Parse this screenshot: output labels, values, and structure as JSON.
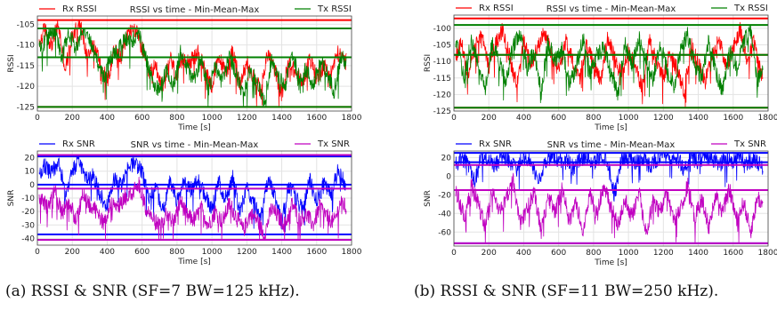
{
  "chart_data": [
    {
      "type": "line",
      "title": "RSSI vs time - Min-Mean-Max",
      "xlabel": "Time [s]",
      "ylabel": "RSSI",
      "xlim": [
        0,
        1800
      ],
      "ylim": [
        -126,
        -103
      ],
      "xticks": [
        0,
        200,
        400,
        600,
        800,
        1000,
        1200,
        1400,
        1600,
        1800
      ],
      "yticks": [
        -125,
        -120,
        -115,
        -110,
        -105
      ],
      "grid": true,
      "legend": "top-left-and-top-right",
      "series": [
        {
          "name": "Rx RSSI",
          "color": "#ff0000",
          "min": -125,
          "mean": -113,
          "max": -104,
          "x": [
            0,
            40,
            80,
            120,
            160,
            200,
            240,
            280,
            320,
            360,
            400,
            440,
            480,
            520,
            560,
            600,
            640,
            680,
            720,
            760,
            800,
            840,
            880,
            920,
            960,
            1000,
            1040,
            1080,
            1120,
            1160,
            1200,
            1240,
            1280,
            1320,
            1360,
            1400,
            1440,
            1480,
            1520,
            1560,
            1600,
            1640,
            1680,
            1720,
            1760
          ],
          "values": [
            -112,
            -106,
            -110,
            -105,
            -116,
            -108,
            -104,
            -112,
            -110,
            -114,
            -119,
            -111,
            -113,
            -107,
            -106,
            -111,
            -117,
            -115,
            -121,
            -113,
            -118,
            -113,
            -114,
            -112,
            -116,
            -120,
            -113,
            -117,
            -111,
            -120,
            -114,
            -118,
            -121,
            -112,
            -116,
            -122,
            -114,
            -117,
            -119,
            -113,
            -118,
            -115,
            -117,
            -112,
            -114
          ]
        },
        {
          "name": "Tx RSSI",
          "color": "#008000",
          "min": -125,
          "mean": -113,
          "max": -106,
          "x": [
            20,
            60,
            100,
            140,
            180,
            220,
            260,
            300,
            340,
            380,
            420,
            460,
            500,
            540,
            580,
            620,
            660,
            700,
            740,
            780,
            820,
            860,
            900,
            940,
            980,
            1020,
            1060,
            1100,
            1140,
            1180,
            1220,
            1260,
            1300,
            1340,
            1380,
            1420,
            1460,
            1500,
            1540,
            1580,
            1620,
            1660,
            1700,
            1740,
            1780
          ],
          "values": [
            -111,
            -108,
            -106,
            -113,
            -107,
            -111,
            -106,
            -109,
            -114,
            -118,
            -113,
            -112,
            -108,
            -109,
            -107,
            -113,
            -119,
            -121,
            -116,
            -120,
            -112,
            -116,
            -118,
            -113,
            -121,
            -115,
            -119,
            -113,
            -117,
            -122,
            -116,
            -119,
            -124,
            -114,
            -118,
            -120,
            -112,
            -118,
            -116,
            -120,
            -114,
            -117,
            -121,
            -113,
            -115
          ]
        }
      ],
      "_row": 0,
      "_col": 0
    },
    {
      "type": "line",
      "title": "SNR vs time - Min-Mean-Max",
      "xlabel": "Time [s]",
      "ylabel": "SNR",
      "xlim": [
        0,
        1800
      ],
      "ylim": [
        -45,
        25
      ],
      "xticks": [
        0,
        200,
        400,
        600,
        800,
        1000,
        1200,
        1400,
        1600,
        1800
      ],
      "yticks": [
        -40,
        -30,
        -20,
        -10,
        0,
        10,
        20
      ],
      "grid": true,
      "legend": "top-left-and-top-right",
      "series": [
        {
          "name": "Rx SNR",
          "color": "#0000ff",
          "min": -37,
          "mean": 0,
          "max": 21,
          "x": [
            0,
            40,
            80,
            120,
            160,
            200,
            240,
            280,
            320,
            360,
            400,
            440,
            480,
            520,
            560,
            600,
            640,
            680,
            720,
            760,
            800,
            840,
            880,
            920,
            960,
            1000,
            1040,
            1080,
            1120,
            1160,
            1200,
            1240,
            1280,
            1320,
            1360,
            1400,
            1440,
            1480,
            1520,
            1560,
            1600,
            1640,
            1680,
            1720,
            1760
          ],
          "values": [
            2,
            15,
            8,
            18,
            -5,
            10,
            19,
            3,
            6,
            -8,
            -15,
            4,
            0,
            12,
            17,
            9,
            -10,
            -3,
            -20,
            2,
            -12,
            1,
            -4,
            5,
            -9,
            -18,
            2,
            -11,
            6,
            -22,
            -2,
            -13,
            -25,
            4,
            -8,
            -28,
            -1,
            -9,
            -19,
            3,
            -12,
            0,
            -7,
            10,
            2
          ]
        },
        {
          "name": "Tx SNR",
          "color": "#c000c0",
          "min": -41,
          "mean": -3,
          "max": 22,
          "x": [
            20,
            60,
            100,
            140,
            180,
            220,
            260,
            300,
            340,
            380,
            420,
            460,
            500,
            540,
            580,
            620,
            660,
            700,
            740,
            780,
            820,
            860,
            900,
            940,
            980,
            1020,
            1060,
            1100,
            1140,
            1180,
            1220,
            1260,
            1300,
            1340,
            1380,
            1420,
            1460,
            1500,
            1540,
            1580,
            1620,
            1660,
            1700,
            1740,
            1780
          ],
          "values": [
            -10,
            -18,
            -5,
            -22,
            -12,
            -26,
            -8,
            -15,
            -20,
            -30,
            -14,
            -16,
            -10,
            -6,
            2,
            -18,
            -25,
            -32,
            -22,
            -28,
            -12,
            -24,
            -26,
            -18,
            -30,
            -20,
            -28,
            -14,
            -24,
            -34,
            -22,
            -26,
            -38,
            -18,
            -24,
            -30,
            -14,
            -26,
            -22,
            -30,
            -16,
            -24,
            -28,
            -12,
            -20
          ]
        }
      ],
      "_row": 1,
      "_col": 0
    },
    {
      "type": "line",
      "title": "RSSI vs time - Min-Mean-Max",
      "xlabel": "Time [s]",
      "ylabel": "RSSI",
      "xlim": [
        0,
        1800
      ],
      "ylim": [
        -125,
        -96
      ],
      "xticks": [
        0,
        200,
        400,
        600,
        800,
        1000,
        1200,
        1400,
        1600,
        1800
      ],
      "yticks": [
        -125,
        -120,
        -115,
        -110,
        -105,
        -100
      ],
      "grid": true,
      "legend": "top-left-and-top-right",
      "series": [
        {
          "name": "Rx RSSI",
          "color": "#ff0000",
          "min": -124,
          "mean": -108,
          "max": -97,
          "x": [
            0,
            40,
            80,
            120,
            160,
            200,
            240,
            280,
            320,
            360,
            400,
            440,
            480,
            520,
            560,
            600,
            640,
            680,
            720,
            760,
            800,
            840,
            880,
            920,
            960,
            1000,
            1040,
            1080,
            1120,
            1160,
            1200,
            1240,
            1280,
            1320,
            1360,
            1400,
            1440,
            1480,
            1520,
            1560,
            1600,
            1640,
            1680,
            1720,
            1760
          ],
          "values": [
            -110,
            -104,
            -114,
            -106,
            -102,
            -112,
            -105,
            -100,
            -109,
            -117,
            -103,
            -111,
            -106,
            -101,
            -108,
            -113,
            -104,
            -110,
            -115,
            -105,
            -111,
            -116,
            -103,
            -109,
            -114,
            -106,
            -112,
            -118,
            -104,
            -110,
            -115,
            -107,
            -113,
            -119,
            -105,
            -111,
            -116,
            -108,
            -103,
            -112,
            -106,
            -100,
            -110,
            -104,
            -114
          ]
        },
        {
          "name": "Tx RSSI",
          "color": "#008000",
          "min": -124,
          "mean": -108,
          "max": -99,
          "x": [
            20,
            60,
            100,
            140,
            180,
            220,
            260,
            300,
            340,
            380,
            420,
            460,
            500,
            540,
            580,
            620,
            660,
            700,
            740,
            780,
            820,
            860,
            900,
            940,
            980,
            1020,
            1060,
            1100,
            1140,
            1180,
            1220,
            1260,
            1300,
            1340,
            1380,
            1420,
            1460,
            1500,
            1540,
            1580,
            1620,
            1660,
            1700,
            1740,
            1780
          ],
          "values": [
            -106,
            -115,
            -103,
            -111,
            -118,
            -104,
            -110,
            -116,
            -105,
            -102,
            -112,
            -107,
            -119,
            -104,
            -110,
            -106,
            -117,
            -112,
            -103,
            -114,
            -108,
            -106,
            -113,
            -120,
            -105,
            -111,
            -103,
            -109,
            -116,
            -104,
            -112,
            -118,
            -106,
            -102,
            -111,
            -115,
            -104,
            -113,
            -119,
            -107,
            -112,
            -104,
            -101,
            -116,
            -109
          ]
        }
      ],
      "_row": 0,
      "_col": 1
    },
    {
      "type": "line",
      "title": "SNR vs time - Min-Mean-Max",
      "xlabel": "Time [s]",
      "ylabel": "SNR",
      "xlim": [
        0,
        1800
      ],
      "ylim": [
        -75,
        27
      ],
      "xticks": [
        0,
        200,
        400,
        600,
        800,
        1000,
        1200,
        1400,
        1600,
        1800
      ],
      "yticks": [
        -60,
        -40,
        -20,
        0,
        20
      ],
      "grid": true,
      "legend": "top-left-and-top-right",
      "series": [
        {
          "name": "Rx SNR",
          "color": "#0000ff",
          "min": -72,
          "mean": 15,
          "max": 25,
          "x": [
            0,
            40,
            80,
            120,
            160,
            200,
            240,
            280,
            320,
            360,
            400,
            440,
            480,
            520,
            560,
            600,
            640,
            680,
            720,
            760,
            800,
            840,
            880,
            920,
            960,
            1000,
            1040,
            1080,
            1120,
            1160,
            1200,
            1240,
            1280,
            1320,
            1360,
            1400,
            1440,
            1480,
            1520,
            1560,
            1600,
            1640,
            1680,
            1720,
            1760
          ],
          "values": [
            10,
            20,
            15,
            -5,
            22,
            18,
            12,
            23,
            16,
            8,
            21,
            19,
            -10,
            14,
            22,
            17,
            20,
            9,
            18,
            21,
            13,
            23,
            16,
            -20,
            19,
            22,
            15,
            20,
            11,
            18,
            24,
            17,
            19,
            8,
            21,
            15,
            23,
            18,
            12,
            20,
            16,
            22,
            14,
            19,
            10
          ]
        },
        {
          "name": "Tx SNR",
          "color": "#c000c0",
          "min": -72,
          "mean": -15,
          "max": 12,
          "x": [
            20,
            60,
            100,
            140,
            180,
            220,
            260,
            300,
            340,
            380,
            420,
            460,
            500,
            540,
            580,
            620,
            660,
            700,
            740,
            780,
            820,
            860,
            900,
            940,
            980,
            1020,
            1060,
            1100,
            1140,
            1180,
            1220,
            1260,
            1300,
            1340,
            1380,
            1420,
            1460,
            1500,
            1540,
            1580,
            1620,
            1660,
            1700,
            1740,
            1780
          ],
          "values": [
            -20,
            -45,
            -10,
            -30,
            -55,
            -15,
            -40,
            -25,
            -5,
            -50,
            -35,
            -18,
            -60,
            -22,
            -38,
            -12,
            -48,
            -30,
            -58,
            -20,
            -42,
            -8,
            -35,
            -52,
            -25,
            -45,
            -15,
            -62,
            -28,
            -40,
            -18,
            -50,
            -32,
            -10,
            -46,
            -24,
            -55,
            -20,
            -38,
            -14,
            -48,
            -28,
            -60,
            -22,
            -36
          ]
        }
      ],
      "_row": 1,
      "_col": 1
    }
  ],
  "captions": {
    "a": "(a) RSSI & SNR (SF=7 BW=125 kHz).",
    "b": "(b) RSSI & SNR (SF=11 BW=250 kHz)."
  }
}
